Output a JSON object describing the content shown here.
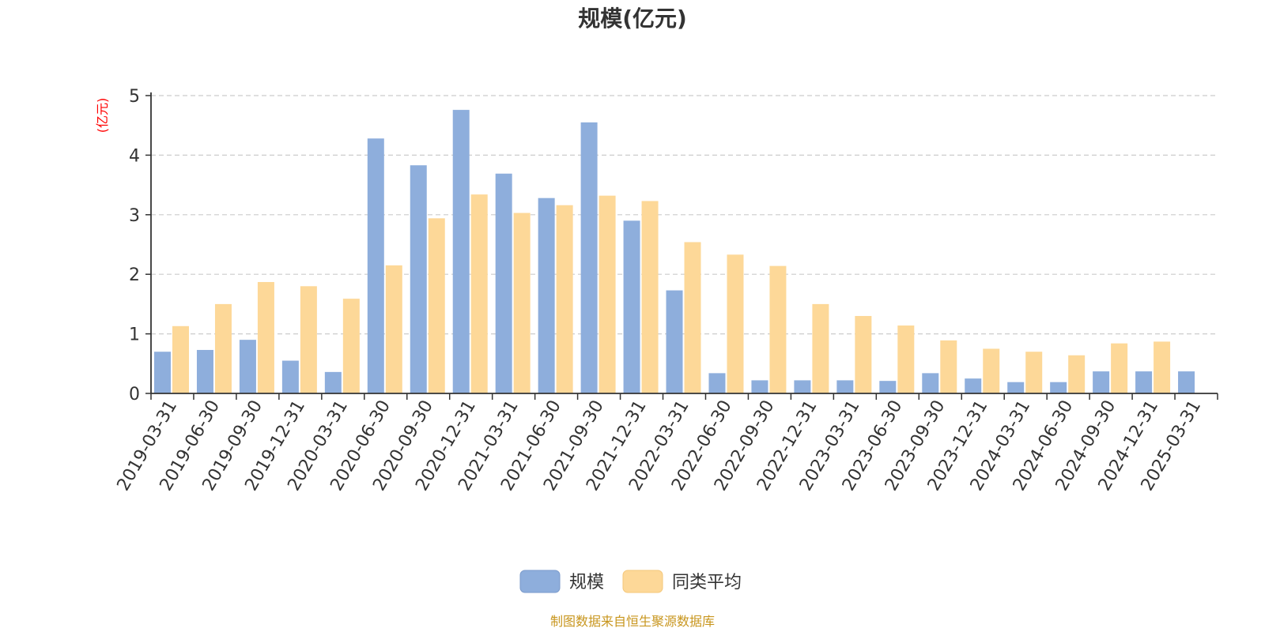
{
  "chart_data": {
    "type": "bar",
    "title": "规模(亿元)",
    "ylabel": "(亿元)",
    "ylim": [
      0,
      5
    ],
    "yticks": [
      "0",
      "1",
      "2",
      "3",
      "4",
      "5"
    ],
    "grid": true,
    "legend_position": "bottom-center",
    "categories": [
      "2019-03-31",
      "2019-06-30",
      "2019-09-30",
      "2019-12-31",
      "2020-03-31",
      "2020-06-30",
      "2020-09-30",
      "2020-12-31",
      "2021-03-31",
      "2021-06-30",
      "2021-09-30",
      "2021-12-31",
      "2022-03-31",
      "2022-06-30",
      "2022-09-30",
      "2022-12-31",
      "2023-03-31",
      "2023-06-30",
      "2023-09-30",
      "2023-12-31",
      "2024-03-31",
      "2024-06-30",
      "2024-09-30",
      "2024-12-31",
      "2025-03-31"
    ],
    "series": [
      {
        "name": "规模",
        "color": "#8eaedc",
        "values": [
          0.7,
          0.73,
          0.9,
          0.55,
          0.36,
          4.28,
          3.83,
          4.76,
          3.69,
          3.28,
          4.55,
          2.9,
          1.73,
          0.34,
          0.22,
          0.22,
          0.22,
          0.21,
          0.34,
          0.25,
          0.19,
          0.19,
          0.37,
          0.37,
          0.37
        ]
      },
      {
        "name": "同类平均",
        "color": "#fdd898",
        "values": [
          1.13,
          1.5,
          1.87,
          1.8,
          1.59,
          2.15,
          2.94,
          3.34,
          3.03,
          3.16,
          3.32,
          3.23,
          2.54,
          2.33,
          2.14,
          1.5,
          1.3,
          1.14,
          0.89,
          0.75,
          0.7,
          0.64,
          0.84,
          0.87,
          null
        ]
      }
    ],
    "source_note": "制图数据来自恒生聚源数据库"
  }
}
